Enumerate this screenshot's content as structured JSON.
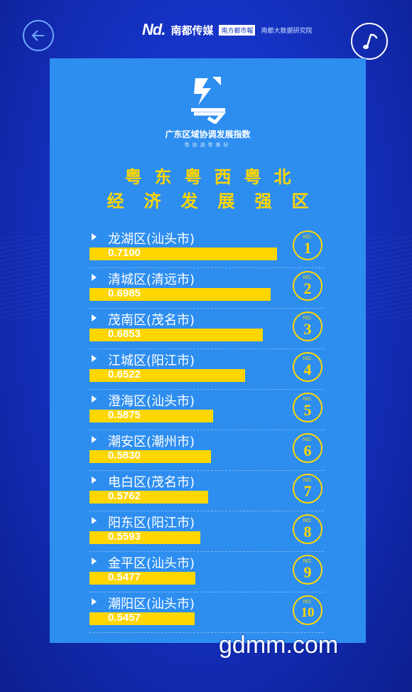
{
  "brand": {
    "logo_text": "Nd.",
    "name": "南都传媒",
    "badge1": "南方都市報",
    "badge2": "南都大数据研究院"
  },
  "card": {
    "logo_title": "广东区域协调发展指数",
    "logo_sub": "粤协调粤美好",
    "headline_line1": "粤东粤西粤北",
    "headline_line2": "经济发展强区"
  },
  "rankings": [
    {
      "name": "龙湖区(汕头市)",
      "value": "0.7100",
      "score": 0.71,
      "no": "NO.",
      "rank": "1"
    },
    {
      "name": "清城区(清远市)",
      "value": "0.6985",
      "score": 0.6985,
      "no": "NO.",
      "rank": "2"
    },
    {
      "name": "茂南区(茂名市)",
      "value": "0.6853",
      "score": 0.6853,
      "no": "NO.",
      "rank": "3"
    },
    {
      "name": "江城区(阳江市)",
      "value": "0.6522",
      "score": 0.6522,
      "no": "NO.",
      "rank": "4"
    },
    {
      "name": "澄海区(汕头市)",
      "value": "0.5875",
      "score": 0.5875,
      "no": "NO.",
      "rank": "5"
    },
    {
      "name": "潮安区(潮州市)",
      "value": "0.5830",
      "score": 0.583,
      "no": "NO.",
      "rank": "6"
    },
    {
      "name": "电白区(茂名市)",
      "value": "0.5762",
      "score": 0.5762,
      "no": "NO.",
      "rank": "7"
    },
    {
      "name": "阳东区(阳江市)",
      "value": "0.5593",
      "score": 0.5593,
      "no": "NO.",
      "rank": "8"
    },
    {
      "name": "金平区(汕头市)",
      "value": "0.5477",
      "score": 0.5477,
      "no": "NO.",
      "rank": "9"
    },
    {
      "name": "潮阳区(汕头市)",
      "value": "0.5457",
      "score": 0.5457,
      "no": "NO.",
      "rank": "10"
    }
  ],
  "watermark": "gdmm.com",
  "icons": {
    "back": "back-arrow-icon",
    "music": "music-note-icon"
  },
  "colors": {
    "background": "#1532c4",
    "card": "#2e8ef0",
    "accent": "#ffd600"
  }
}
